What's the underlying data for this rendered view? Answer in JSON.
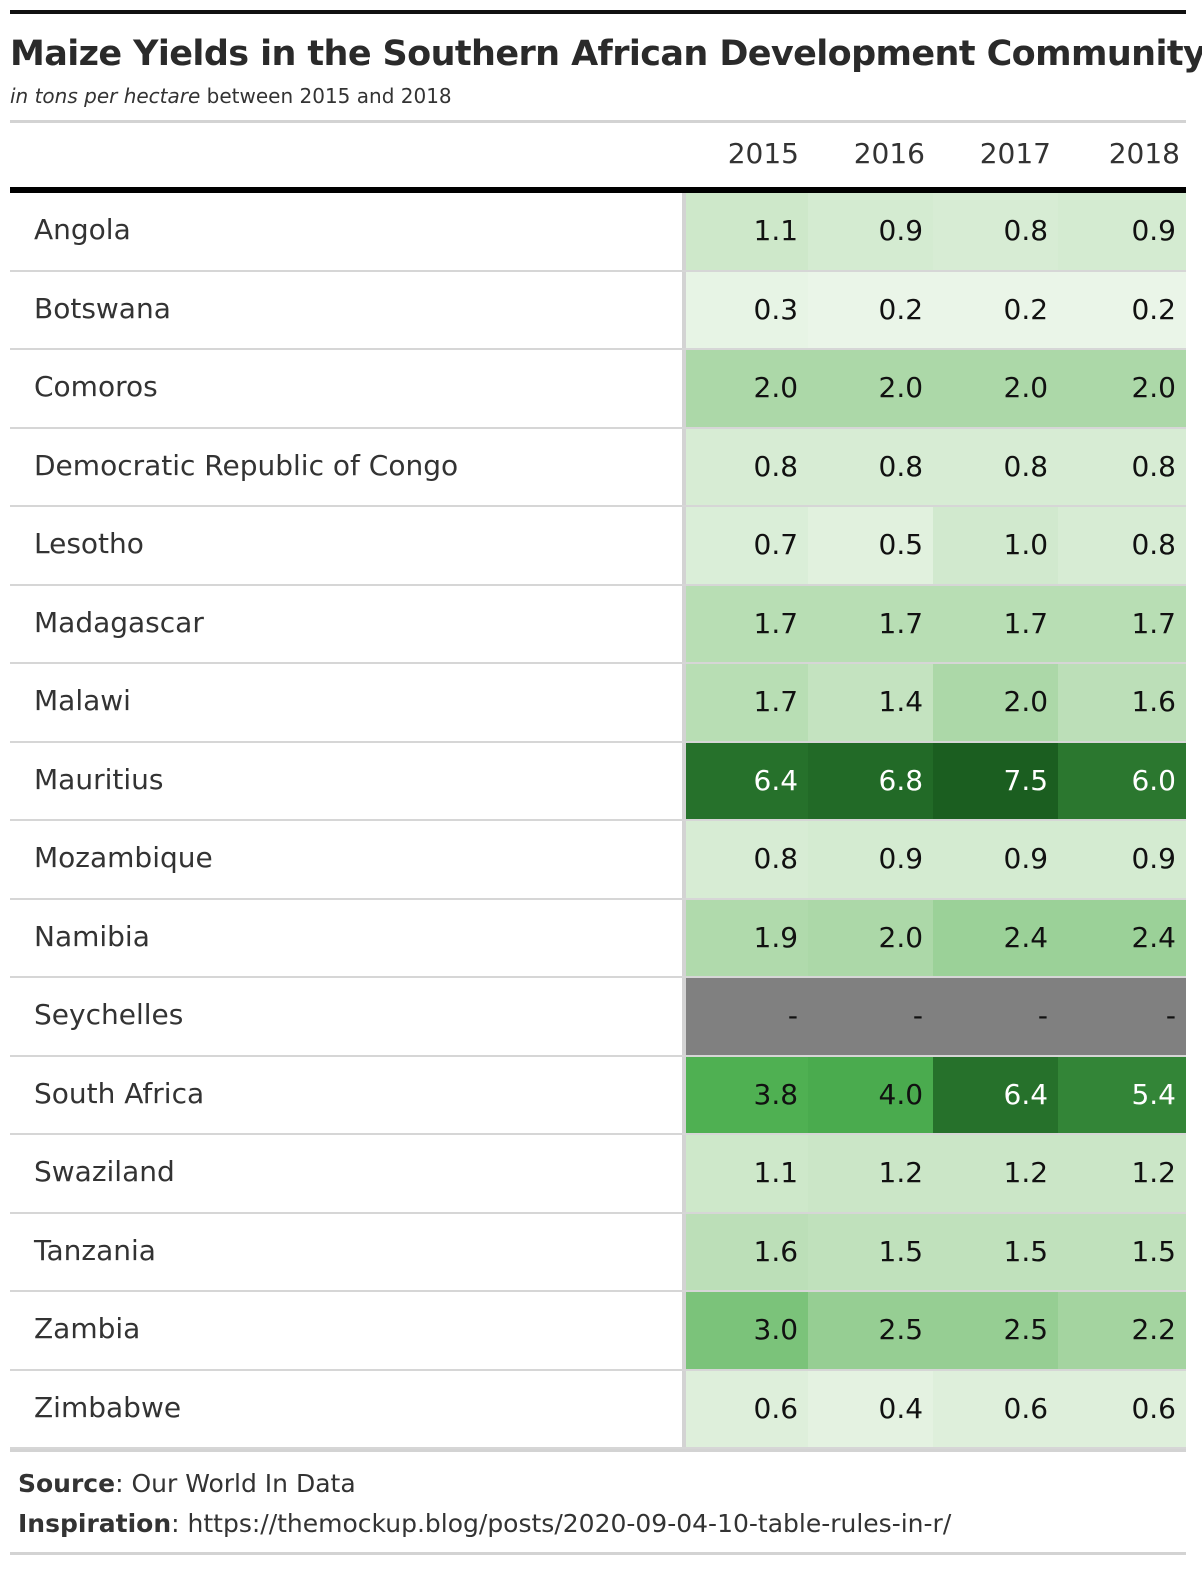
{
  "title": "Maize Yields in the Southern African Development Community",
  "subtitle_italic": "in tons per hectare",
  "subtitle_rest": " between 2015 and 2018",
  "source_label": "Source",
  "source_text": ": Our World In Data",
  "inspiration_label": "Inspiration",
  "inspiration_text": ": https://themockup.blog/posts/2020-09-04-10-table-rules-in-r/",
  "colors": {
    "missing": "#808080",
    "scale_low": "#eaf5e8",
    "scale_high": "#1b5e20"
  },
  "chart_data": {
    "type": "table",
    "title": "Maize Yields in the Southern African Development Community",
    "subtitle": "in tons per hectare between 2015 and 2018",
    "columns": [
      "2015",
      "2016",
      "2017",
      "2018"
    ],
    "rows": [
      {
        "name": "Angola",
        "values": [
          1.1,
          0.9,
          0.8,
          0.9
        ]
      },
      {
        "name": "Botswana",
        "values": [
          0.3,
          0.2,
          0.2,
          0.2
        ]
      },
      {
        "name": "Comoros",
        "values": [
          2.0,
          2.0,
          2.0,
          2.0
        ]
      },
      {
        "name": "Democratic Republic of Congo",
        "values": [
          0.8,
          0.8,
          0.8,
          0.8
        ]
      },
      {
        "name": "Lesotho",
        "values": [
          0.7,
          0.5,
          1.0,
          0.8
        ]
      },
      {
        "name": "Madagascar",
        "values": [
          1.7,
          1.7,
          1.7,
          1.7
        ]
      },
      {
        "name": "Malawi",
        "values": [
          1.7,
          1.4,
          2.0,
          1.6
        ]
      },
      {
        "name": "Mauritius",
        "values": [
          6.4,
          6.8,
          7.5,
          6.0
        ]
      },
      {
        "name": "Mozambique",
        "values": [
          0.8,
          0.9,
          0.9,
          0.9
        ]
      },
      {
        "name": "Namibia",
        "values": [
          1.9,
          2.0,
          2.4,
          2.4
        ]
      },
      {
        "name": "Seychelles",
        "values": [
          null,
          null,
          null,
          null
        ]
      },
      {
        "name": "South Africa",
        "values": [
          3.8,
          4.0,
          6.4,
          5.4
        ]
      },
      {
        "name": "Swaziland",
        "values": [
          1.1,
          1.2,
          1.2,
          1.2
        ]
      },
      {
        "name": "Tanzania",
        "values": [
          1.6,
          1.5,
          1.5,
          1.5
        ]
      },
      {
        "name": "Zambia",
        "values": [
          3.0,
          2.5,
          2.5,
          2.2
        ]
      },
      {
        "name": "Zimbabwe",
        "values": [
          0.6,
          0.4,
          0.6,
          0.6
        ]
      }
    ],
    "missing_label": "-"
  }
}
